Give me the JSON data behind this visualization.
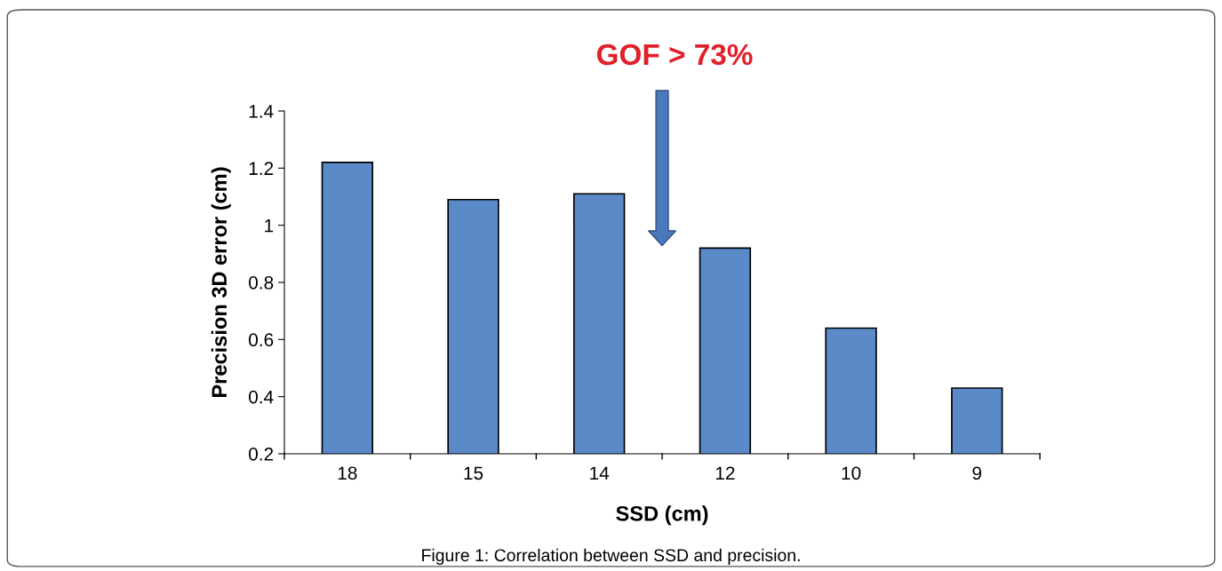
{
  "chart_data": {
    "type": "bar",
    "xlabel": "SSD (cm)",
    "ylabel": "Precision 3D error (cm)",
    "categories": [
      "18",
      "15",
      "14",
      "12",
      "10",
      "9"
    ],
    "values": [
      1.22,
      1.09,
      1.11,
      0.92,
      0.64,
      0.43
    ],
    "color": "#5a8bc8",
    "ylim": [
      0.2,
      1.4
    ],
    "yticks": [
      {
        "value": 0.2,
        "label": "0.2"
      },
      {
        "value": 0.4,
        "label": "0.4"
      },
      {
        "value": 0.6,
        "label": "0.6"
      },
      {
        "value": 0.8,
        "label": "0.8"
      },
      {
        "value": 1,
        "label": "1"
      },
      {
        "value": 1.2,
        "label": "1.2"
      },
      {
        "value": 1.4,
        "label": "1.4"
      }
    ],
    "grid": false,
    "legend": false,
    "annotations": [
      "GOF > 73%",
      "Figure 1: Correlation between SSD and precision."
    ]
  }
}
